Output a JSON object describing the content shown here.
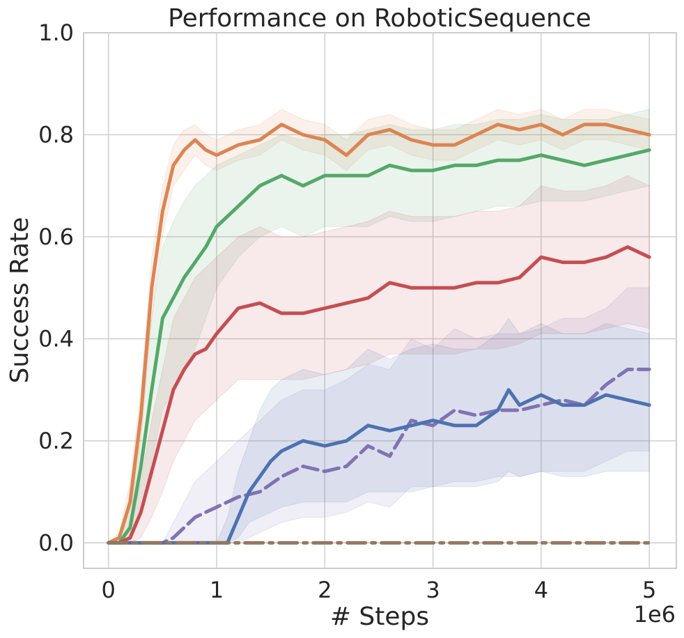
{
  "chart_data": {
    "type": "line",
    "title": "Performance on RoboticSequence",
    "xlabel": "# Steps",
    "ylabel": "Success Rate",
    "x_offset_label": "1e6",
    "xlim": [
      -0.23,
      5.25
    ],
    "ylim": [
      -0.05,
      1.0
    ],
    "x_ticks": [
      0,
      1,
      2,
      3,
      4,
      5
    ],
    "x_tick_labels": [
      "0",
      "1",
      "2",
      "3",
      "4",
      "5"
    ],
    "y_ticks": [
      0.0,
      0.2,
      0.4,
      0.6,
      0.8,
      1.0
    ],
    "y_tick_labels": [
      "0.0",
      "0.2",
      "0.4",
      "0.6",
      "0.8",
      "1.0"
    ],
    "grid": true,
    "x_scale_note": "x values in units of 1e6 steps",
    "series": [
      {
        "color": "#dd8452",
        "dash": "solid",
        "x": [
          0,
          0.1,
          0.2,
          0.3,
          0.4,
          0.5,
          0.6,
          0.7,
          0.8,
          0.9,
          1.0,
          1.2,
          1.4,
          1.6,
          1.8,
          2.0,
          2.2,
          2.4,
          2.6,
          2.8,
          3.0,
          3.2,
          3.4,
          3.6,
          3.8,
          4.0,
          4.2,
          4.4,
          4.6,
          4.8,
          5.0
        ],
        "y": [
          0,
          0.01,
          0.08,
          0.25,
          0.5,
          0.65,
          0.74,
          0.77,
          0.79,
          0.77,
          0.76,
          0.78,
          0.79,
          0.82,
          0.8,
          0.79,
          0.76,
          0.8,
          0.81,
          0.79,
          0.78,
          0.78,
          0.8,
          0.82,
          0.81,
          0.82,
          0.8,
          0.82,
          0.82,
          0.81,
          0.8
        ],
        "lower": [
          0,
          0,
          0.04,
          0.2,
          0.44,
          0.6,
          0.7,
          0.73,
          0.76,
          0.74,
          0.73,
          0.75,
          0.76,
          0.79,
          0.77,
          0.76,
          0.73,
          0.77,
          0.78,
          0.76,
          0.75,
          0.75,
          0.77,
          0.79,
          0.78,
          0.79,
          0.77,
          0.79,
          0.79,
          0.78,
          0.77
        ],
        "upper": [
          0,
          0.02,
          0.12,
          0.3,
          0.56,
          0.7,
          0.78,
          0.81,
          0.82,
          0.8,
          0.79,
          0.81,
          0.82,
          0.85,
          0.83,
          0.82,
          0.79,
          0.83,
          0.84,
          0.82,
          0.81,
          0.81,
          0.83,
          0.85,
          0.84,
          0.85,
          0.83,
          0.85,
          0.85,
          0.84,
          0.83
        ]
      },
      {
        "color": "#55a868",
        "dash": "solid",
        "x": [
          0,
          0.1,
          0.2,
          0.3,
          0.4,
          0.5,
          0.6,
          0.7,
          0.8,
          0.9,
          1.0,
          1.2,
          1.4,
          1.6,
          1.8,
          2.0,
          2.2,
          2.4,
          2.6,
          2.8,
          3.0,
          3.2,
          3.4,
          3.6,
          3.8,
          4.0,
          4.2,
          4.4,
          4.6,
          4.8,
          5.0
        ],
        "y": [
          0,
          0,
          0.03,
          0.15,
          0.3,
          0.44,
          0.48,
          0.52,
          0.55,
          0.58,
          0.62,
          0.66,
          0.7,
          0.72,
          0.7,
          0.72,
          0.72,
          0.72,
          0.74,
          0.73,
          0.73,
          0.74,
          0.74,
          0.75,
          0.75,
          0.76,
          0.75,
          0.74,
          0.75,
          0.76,
          0.77
        ],
        "lower": [
          0,
          0,
          0,
          0.06,
          0.16,
          0.26,
          0.3,
          0.34,
          0.38,
          0.44,
          0.5,
          0.56,
          0.6,
          0.62,
          0.6,
          0.62,
          0.62,
          0.62,
          0.64,
          0.63,
          0.63,
          0.64,
          0.65,
          0.66,
          0.66,
          0.67,
          0.67,
          0.67,
          0.68,
          0.69,
          0.7
        ],
        "upper": [
          0,
          0,
          0.08,
          0.26,
          0.44,
          0.58,
          0.63,
          0.67,
          0.7,
          0.72,
          0.74,
          0.76,
          0.78,
          0.8,
          0.79,
          0.8,
          0.8,
          0.81,
          0.82,
          0.81,
          0.81,
          0.82,
          0.82,
          0.83,
          0.83,
          0.84,
          0.83,
          0.83,
          0.83,
          0.84,
          0.85
        ]
      },
      {
        "color": "#c44e52",
        "dash": "solid",
        "x": [
          0,
          0.1,
          0.2,
          0.3,
          0.4,
          0.5,
          0.6,
          0.7,
          0.8,
          0.9,
          1.0,
          1.2,
          1.4,
          1.6,
          1.8,
          2.0,
          2.2,
          2.4,
          2.6,
          2.8,
          3.0,
          3.2,
          3.4,
          3.6,
          3.8,
          4.0,
          4.2,
          4.4,
          4.6,
          4.8,
          5.0
        ],
        "y": [
          0,
          0,
          0.01,
          0.06,
          0.14,
          0.22,
          0.3,
          0.34,
          0.37,
          0.38,
          0.41,
          0.46,
          0.47,
          0.45,
          0.45,
          0.46,
          0.47,
          0.48,
          0.51,
          0.5,
          0.5,
          0.5,
          0.51,
          0.51,
          0.52,
          0.56,
          0.55,
          0.55,
          0.56,
          0.58,
          0.56
        ],
        "lower": [
          0,
          0,
          0,
          0.01,
          0.05,
          0.1,
          0.16,
          0.2,
          0.24,
          0.26,
          0.28,
          0.32,
          0.32,
          0.32,
          0.32,
          0.33,
          0.34,
          0.35,
          0.37,
          0.37,
          0.37,
          0.37,
          0.38,
          0.38,
          0.39,
          0.41,
          0.41,
          0.41,
          0.42,
          0.43,
          0.42
        ],
        "upper": [
          0,
          0,
          0.03,
          0.12,
          0.24,
          0.34,
          0.44,
          0.48,
          0.52,
          0.54,
          0.56,
          0.6,
          0.62,
          0.6,
          0.6,
          0.61,
          0.62,
          0.63,
          0.65,
          0.64,
          0.64,
          0.64,
          0.65,
          0.65,
          0.66,
          0.7,
          0.69,
          0.69,
          0.7,
          0.72,
          0.7
        ]
      },
      {
        "color": "#8172b3",
        "dash": "dashed",
        "x": [
          0,
          0.5,
          0.6,
          0.7,
          0.8,
          0.9,
          1.0,
          1.2,
          1.4,
          1.6,
          1.8,
          2.0,
          2.2,
          2.4,
          2.6,
          2.8,
          3.0,
          3.2,
          3.4,
          3.6,
          3.8,
          4.0,
          4.2,
          4.4,
          4.6,
          4.8,
          5.0
        ],
        "y": [
          0,
          0,
          0.01,
          0.03,
          0.05,
          0.06,
          0.07,
          0.09,
          0.1,
          0.13,
          0.15,
          0.14,
          0.15,
          0.19,
          0.17,
          0.24,
          0.23,
          0.26,
          0.25,
          0.26,
          0.26,
          0.27,
          0.28,
          0.27,
          0.31,
          0.34,
          0.34
        ],
        "lower": [
          0,
          0,
          0,
          0,
          0,
          0,
          0,
          0,
          0.02,
          0.04,
          0.05,
          0.05,
          0.06,
          0.08,
          0.07,
          0.11,
          0.11,
          0.12,
          0.12,
          0.13,
          0.13,
          0.14,
          0.14,
          0.14,
          0.16,
          0.18,
          0.18
        ],
        "upper": [
          0,
          0,
          0.04,
          0.08,
          0.12,
          0.14,
          0.16,
          0.2,
          0.24,
          0.28,
          0.3,
          0.3,
          0.32,
          0.35,
          0.34,
          0.4,
          0.38,
          0.42,
          0.4,
          0.41,
          0.41,
          0.42,
          0.44,
          0.44,
          0.46,
          0.5,
          0.5
        ]
      },
      {
        "color": "#4c72b0",
        "dash": "solid",
        "x": [
          0,
          1.0,
          1.1,
          1.2,
          1.3,
          1.4,
          1.5,
          1.6,
          1.8,
          2.0,
          2.2,
          2.4,
          2.6,
          2.8,
          3.0,
          3.2,
          3.4,
          3.6,
          3.7,
          3.8,
          4.0,
          4.2,
          4.4,
          4.6,
          4.8,
          5.0
        ],
        "y": [
          0,
          0,
          0,
          0.05,
          0.1,
          0.13,
          0.16,
          0.18,
          0.2,
          0.19,
          0.2,
          0.23,
          0.22,
          0.23,
          0.24,
          0.23,
          0.23,
          0.26,
          0.3,
          0.27,
          0.29,
          0.27,
          0.27,
          0.29,
          0.28,
          0.27
        ],
        "lower": [
          0,
          0,
          0,
          0.01,
          0.04,
          0.05,
          0.06,
          0.07,
          0.08,
          0.08,
          0.08,
          0.1,
          0.1,
          0.1,
          0.11,
          0.11,
          0.11,
          0.12,
          0.14,
          0.13,
          0.14,
          0.13,
          0.13,
          0.14,
          0.14,
          0.14
        ],
        "upper": [
          0,
          0,
          0.05,
          0.14,
          0.2,
          0.26,
          0.3,
          0.32,
          0.34,
          0.33,
          0.34,
          0.38,
          0.36,
          0.38,
          0.39,
          0.38,
          0.38,
          0.41,
          0.44,
          0.41,
          0.43,
          0.41,
          0.41,
          0.43,
          0.42,
          0.41
        ]
      },
      {
        "color": "#937860",
        "dash": "dashdot",
        "x": [
          0,
          5.0
        ],
        "y": [
          0,
          0
        ],
        "lower": [
          0,
          0
        ],
        "upper": [
          0,
          0
        ]
      }
    ]
  }
}
